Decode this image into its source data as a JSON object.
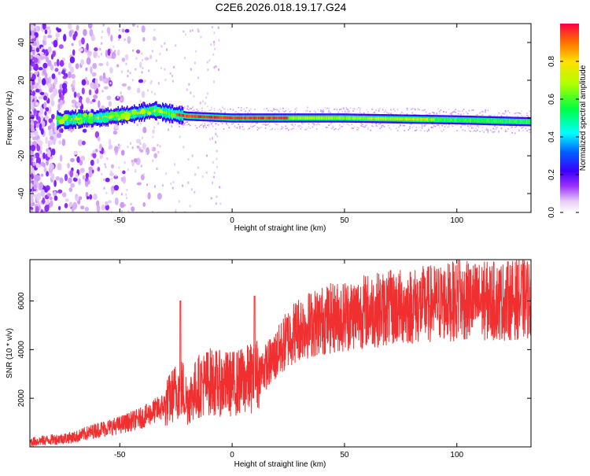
{
  "title": "C2E6.2026.018.19.17.G24",
  "chart_data": [
    {
      "type": "heatmap",
      "xlabel": "Height of straight line (km)",
      "ylabel": "Frequency (Hz)",
      "xlim": [
        -90,
        133
      ],
      "ylim": [
        -50,
        50
      ],
      "xticks": [
        -50,
        0,
        50,
        100
      ],
      "yticks": [
        -40,
        -20,
        0,
        20,
        40
      ],
      "grid": false,
      "colorbar": {
        "label": "Normalized spectral amplitude",
        "range": [
          0,
          1
        ],
        "ticks": [
          0.0,
          0.2,
          0.4,
          0.6,
          0.8
        ],
        "colormap": "rainbow (violet-white to red)"
      },
      "ridge": [
        {
          "x": -75,
          "y": -1
        },
        {
          "x": -60,
          "y": 0
        },
        {
          "x": -45,
          "y": 2
        },
        {
          "x": -35,
          "y": 4
        },
        {
          "x": -26,
          "y": 2
        },
        {
          "x": -20,
          "y": 1
        },
        {
          "x": 0,
          "y": 0
        },
        {
          "x": 50,
          "y": 0
        },
        {
          "x": 100,
          "y": -1
        },
        {
          "x": 133,
          "y": -2
        }
      ]
    },
    {
      "type": "line",
      "xlabel": "Height of straight line (km)",
      "ylabel": "SNR (10 * v/v)",
      "xlim": [
        -90,
        133
      ],
      "ylim": [
        0,
        7700
      ],
      "xticks": [
        -50,
        0,
        50,
        100
      ],
      "yticks": [
        2000,
        4000,
        6000
      ],
      "grid": false,
      "series_color": "#f03030",
      "series": [
        {
          "x": [
            -90,
            -80,
            -70,
            -60,
            -50,
            -40,
            -30,
            -25,
            -22,
            -20,
            -15,
            -10,
            -5,
            0,
            5,
            10,
            15,
            20,
            25,
            30,
            40,
            50,
            60,
            70,
            80,
            90,
            100,
            110,
            120,
            133
          ],
          "y": [
            200,
            300,
            400,
            700,
            900,
            1200,
            1700,
            2300,
            2400,
            1900,
            2500,
            2700,
            2600,
            2600,
            2700,
            2900,
            3300,
            3800,
            4500,
            4900,
            5200,
            5400,
            5600,
            5700,
            5800,
            5900,
            6000,
            6000,
            6000,
            6100
          ]
        }
      ],
      "spikes": [
        {
          "x": -23,
          "y": 6000
        },
        {
          "x": 10,
          "y": 6200
        },
        {
          "x": 101,
          "y": 7700
        }
      ]
    }
  ]
}
